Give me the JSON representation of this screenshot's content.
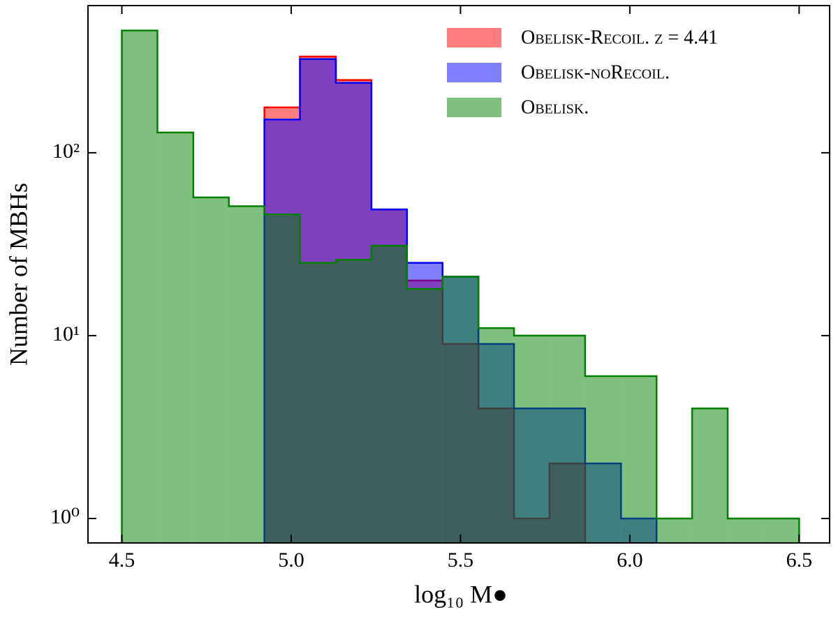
{
  "chart_data": {
    "type": "histogram",
    "xlabel": "log₁₀ M●",
    "ylabel": "Number of MBHs",
    "xlim": [
      4.4,
      6.59
    ],
    "ylim": [
      0.735,
      638
    ],
    "log_y": true,
    "xticks": [
      4.5,
      {
        "value": 5,
        "label": "5.0"
      },
      5.5,
      {
        "value": 6,
        "label": "6.0"
      },
      6.5
    ],
    "yticks": [
      {
        "value": 1,
        "label": "10⁰"
      },
      {
        "value": 10,
        "label": "10¹"
      },
      {
        "value": 100,
        "label": "10²"
      }
    ],
    "legend_loc": "upper right",
    "series": [
      {
        "name": "Obelisk-Recoil. z = 4.41",
        "color": "#ff0000",
        "bins": [
          4.921,
          5.026,
          5.132,
          5.237,
          5.342,
          5.447,
          5.553,
          5.658,
          5.763,
          5.868
        ],
        "values": [
          177,
          336,
          250,
          49,
          20,
          9,
          4,
          1,
          2
        ]
      },
      {
        "name": "Obelisk-noRecoil.",
        "color": "#0000ff",
        "bins": [
          4.921,
          5.026,
          5.132,
          5.237,
          5.342,
          5.447,
          5.553,
          5.658,
          5.763,
          5.868,
          5.974,
          6.079
        ],
        "values": [
          152,
          325,
          241,
          49,
          25,
          21,
          9,
          4,
          4,
          2,
          1
        ]
      },
      {
        "name": "Obelisk.",
        "color": "#008000",
        "bins": [
          4.5,
          4.605,
          4.711,
          4.816,
          4.921,
          5.026,
          5.132,
          5.237,
          5.342,
          5.447,
          5.553,
          5.658,
          5.763,
          5.868,
          5.974,
          6.079,
          6.184,
          6.289,
          6.395,
          6.5
        ],
        "values": [
          466,
          129,
          57,
          51,
          46,
          25,
          26,
          31,
          18,
          21,
          11,
          10,
          10,
          6,
          6,
          1,
          4,
          1,
          1
        ]
      }
    ]
  }
}
